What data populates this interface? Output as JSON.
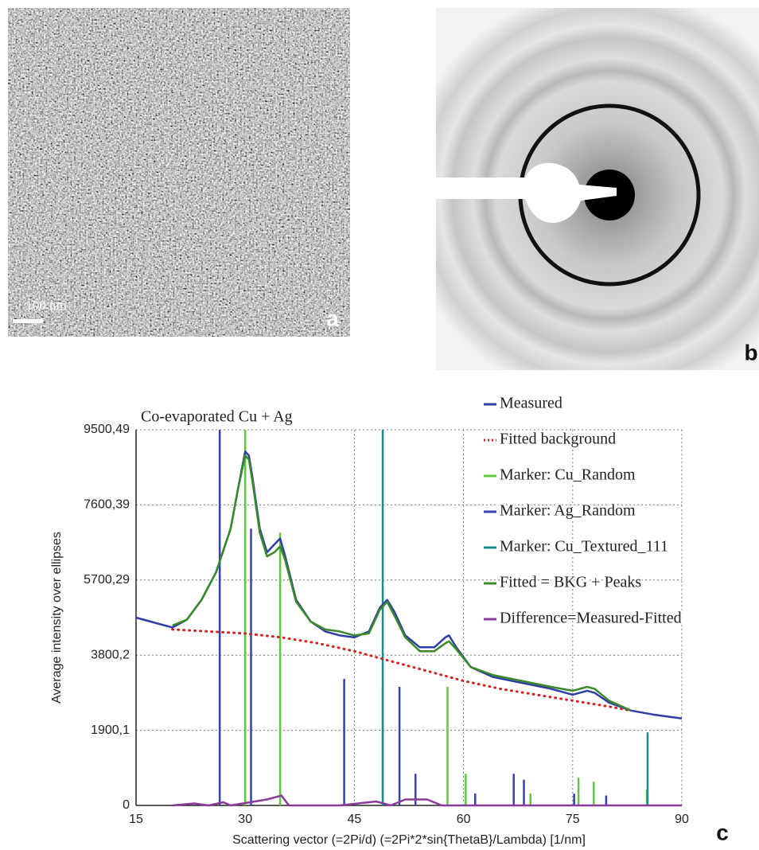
{
  "panel_a": {
    "scale_label": "100 nm",
    "letter": "a"
  },
  "panel_b": {
    "letter": "b"
  },
  "chart_data": {
    "type": "line",
    "panel_letter": "c",
    "title": "Co-evaporated Cu + Ag",
    "x_label": "Scattering vector (=2Pi/d) (=2Pi*2*sin{ThetaB}/Lambda) [1/nm]",
    "y_label": "Average intensity over ellipses",
    "xlim": [
      15,
      90
    ],
    "xticks": [
      15,
      30,
      45,
      60,
      75,
      90
    ],
    "ylim": [
      0,
      9500.49
    ],
    "yticks": [
      0,
      {
        "value": 1900.1,
        "label": "1900,1"
      },
      {
        "value": 3800.2,
        "label": "3800,2"
      },
      {
        "value": 5700.29,
        "label": "5700,29"
      },
      {
        "value": 7600.39,
        "label": "7600,39"
      },
      {
        "value": 9500.49,
        "label": "9500,49"
      }
    ],
    "grid": true,
    "series": [
      {
        "name": "Measured",
        "color": "#2e3ea6",
        "style": "line",
        "x": [
          15,
          18,
          20,
          22,
          24,
          26,
          28,
          29,
          30,
          30.5,
          31,
          32,
          33,
          34,
          34.8,
          35.5,
          37,
          39,
          41,
          43,
          45,
          47,
          48.5,
          49.5,
          50.5,
          52,
          54,
          56,
          57.5,
          58,
          59,
          61,
          64,
          68,
          72,
          75,
          77,
          78,
          80,
          83,
          86,
          88,
          90
        ],
        "values": [
          4750,
          4600,
          4500,
          4700,
          5200,
          5900,
          7000,
          8000,
          8950,
          8850,
          8300,
          7000,
          6400,
          6600,
          6750,
          6300,
          5200,
          4650,
          4400,
          4300,
          4250,
          4400,
          5000,
          5200,
          4900,
          4300,
          4000,
          4000,
          4250,
          4300,
          4000,
          3500,
          3250,
          3100,
          2950,
          2800,
          2900,
          2850,
          2600,
          2400,
          2300,
          2250,
          2200
        ]
      },
      {
        "name": "Fitted background",
        "color": "#d42020",
        "style": "dotted",
        "x": [
          20,
          25,
          30,
          35,
          40,
          45,
          50,
          55,
          60,
          65,
          70,
          75,
          80,
          83
        ],
        "values": [
          4450,
          4400,
          4350,
          4250,
          4100,
          3900,
          3650,
          3400,
          3150,
          2950,
          2800,
          2650,
          2500,
          2400
        ]
      },
      {
        "name": "Marker: Cu_Random",
        "color": "#5cc83c",
        "style": "stick",
        "x": [
          30,
          34.8,
          48.9,
          57.8,
          60.3,
          69.2,
          75.8,
          77.9,
          85.2
        ],
        "values": [
          9500,
          6900,
          3100,
          3000,
          800,
          300,
          700,
          600,
          400
        ]
      },
      {
        "name": "Marker: Ag_Random",
        "color": "#3840b0",
        "style": "stick",
        "x": [
          26.5,
          30.8,
          43.6,
          51.2,
          53.4,
          61.6,
          66.9,
          68.3,
          75.2,
          79.6
        ],
        "values": [
          9500,
          7000,
          3200,
          3000,
          800,
          300,
          800,
          650,
          300,
          250
        ]
      },
      {
        "name": "Marker: Cu_Textured_111",
        "color": "#1f8a8a",
        "style": "stick",
        "x": [
          48.9,
          85.3
        ],
        "values": [
          9500,
          1850
        ]
      },
      {
        "name": "Fitted = BKG + Peaks",
        "color": "#3a8a2a",
        "style": "line",
        "x": [
          20,
          22,
          24,
          26,
          28,
          29,
          30,
          30.5,
          31,
          32,
          33,
          34,
          34.8,
          35.5,
          37,
          39,
          41,
          43,
          45,
          47,
          48.5,
          49.5,
          50.5,
          52,
          54,
          56,
          57.5,
          58,
          59,
          61,
          64,
          68,
          72,
          75,
          77,
          78,
          80,
          83
        ],
        "values": [
          4550,
          4700,
          5200,
          5900,
          7000,
          8000,
          8850,
          8750,
          8200,
          6900,
          6300,
          6400,
          6550,
          6200,
          5150,
          4650,
          4450,
          4400,
          4300,
          4350,
          4950,
          5150,
          4800,
          4250,
          3900,
          3900,
          4100,
          4150,
          3950,
          3500,
          3300,
          3150,
          3000,
          2900,
          3000,
          2950,
          2650,
          2400
        ]
      },
      {
        "name": "Difference=Measured-Fitted",
        "color": "#8a3a9a",
        "style": "line",
        "x": [
          20,
          23,
          25,
          27,
          28,
          33,
          35,
          36,
          43,
          48,
          50,
          52,
          55,
          57,
          90
        ],
        "values": [
          0,
          50,
          0,
          80,
          0,
          150,
          250,
          0,
          0,
          100,
          0,
          150,
          150,
          0,
          0
        ]
      }
    ]
  }
}
